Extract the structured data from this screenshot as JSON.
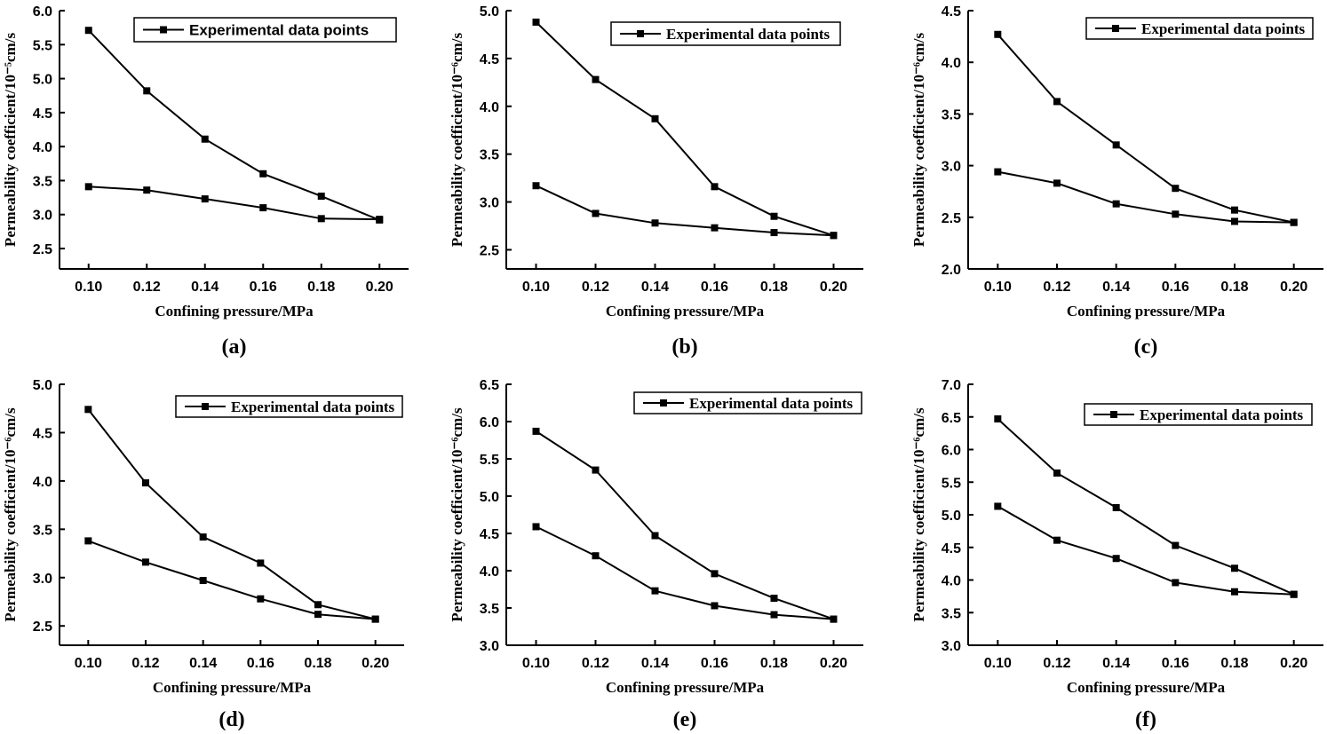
{
  "figure": {
    "panels_count": 6
  },
  "chart_data": [
    {
      "type": "line",
      "panel_label": "(a)",
      "xlabel": "Confining pressure/MPa",
      "ylabel": "Permeability coefficient/10⁻⁵cm/s",
      "x": [
        0.1,
        0.12,
        0.14,
        0.16,
        0.18,
        0.2
      ],
      "x_tick_labels": [
        "0.10",
        "0.12",
        "0.14",
        "0.16",
        "0.18",
        "0.20"
      ],
      "ylim": [
        2.2,
        6.0
      ],
      "y_ticks": [
        2.5,
        3.0,
        3.5,
        4.0,
        4.5,
        5.0,
        5.5,
        6.0
      ],
      "y_tick_labels": [
        "2.5",
        "3.0",
        "3.5",
        "4.0",
        "4.5",
        "5.0",
        "5.5",
        "6.0"
      ],
      "legend": "Experimental data points",
      "series": [
        {
          "name": "upper",
          "values": [
            5.71,
            4.82,
            4.11,
            3.6,
            3.27,
            2.92
          ]
        },
        {
          "name": "lower",
          "values": [
            3.41,
            3.36,
            3.23,
            3.1,
            2.94,
            2.93
          ]
        }
      ]
    },
    {
      "type": "line",
      "panel_label": "(b)",
      "xlabel": "Confining pressure/MPa",
      "ylabel": "Permeability coefficient/10⁻⁶cm/s",
      "x": [
        0.1,
        0.12,
        0.14,
        0.16,
        0.18,
        0.2
      ],
      "x_tick_labels": [
        "0.10",
        "0.12",
        "0.14",
        "0.16",
        "0.18",
        "0.20"
      ],
      "ylim": [
        2.3,
        5.0
      ],
      "y_ticks": [
        2.5,
        3.0,
        3.5,
        4.0,
        4.5,
        5.0
      ],
      "y_tick_labels": [
        "2.5",
        "3.0",
        "3.5",
        "4.0",
        "4.5",
        "5.0"
      ],
      "legend": "Experimental data points",
      "series": [
        {
          "name": "upper",
          "values": [
            4.88,
            4.28,
            3.87,
            3.16,
            2.85,
            2.65
          ]
        },
        {
          "name": "lower",
          "values": [
            3.17,
            2.88,
            2.78,
            2.73,
            2.68,
            2.65
          ]
        }
      ]
    },
    {
      "type": "line",
      "panel_label": "(c)",
      "xlabel": "Confining pressure/MPa",
      "ylabel": "Permeability coefficient/10⁻⁶cm/s",
      "x": [
        0.1,
        0.12,
        0.14,
        0.16,
        0.18,
        0.2
      ],
      "x_tick_labels": [
        "0.10",
        "0.12",
        "0.14",
        "0.16",
        "0.18",
        "0.20"
      ],
      "ylim": [
        2.0,
        4.5
      ],
      "y_ticks": [
        2.0,
        2.5,
        3.0,
        3.5,
        4.0,
        4.5
      ],
      "y_tick_labels": [
        "2.0",
        "2.5",
        "3.0",
        "3.5",
        "4.0",
        "4.5"
      ],
      "legend": "Experimental data points",
      "series": [
        {
          "name": "upper",
          "values": [
            4.27,
            3.62,
            3.2,
            2.78,
            2.57,
            2.45
          ]
        },
        {
          "name": "lower",
          "values": [
            2.94,
            2.83,
            2.63,
            2.53,
            2.46,
            2.45
          ]
        }
      ]
    },
    {
      "type": "line",
      "panel_label": "(d)",
      "xlabel": "Confining pressure/MPa",
      "ylabel": "Permeability coefficient/10⁻⁶cm/s",
      "x": [
        0.1,
        0.12,
        0.14,
        0.16,
        0.18,
        0.2
      ],
      "x_tick_labels": [
        "0.10",
        "0.12",
        "0.14",
        "0.16",
        "0.18",
        "0.20"
      ],
      "ylim": [
        2.3,
        5.0
      ],
      "y_ticks": [
        2.5,
        3.0,
        3.5,
        4.0,
        4.5,
        5.0
      ],
      "y_tick_labels": [
        "2.5",
        "3.0",
        "3.5",
        "4.0",
        "4.5",
        "5.0"
      ],
      "legend": "Experimental data points",
      "series": [
        {
          "name": "upper",
          "values": [
            4.74,
            3.98,
            3.42,
            3.15,
            2.72,
            2.57
          ]
        },
        {
          "name": "lower",
          "values": [
            3.38,
            3.16,
            2.97,
            2.78,
            2.62,
            2.57
          ]
        }
      ]
    },
    {
      "type": "line",
      "panel_label": "(e)",
      "xlabel": "Confining pressure/MPa",
      "ylabel": "Permeability coefficient/10⁻⁶cm/s",
      "x": [
        0.1,
        0.12,
        0.14,
        0.16,
        0.18,
        0.2
      ],
      "x_tick_labels": [
        "0.10",
        "0.12",
        "0.14",
        "0.16",
        "0.18",
        "0.20"
      ],
      "ylim": [
        3.0,
        6.5
      ],
      "y_ticks": [
        3.0,
        3.5,
        4.0,
        4.5,
        5.0,
        5.5,
        6.0,
        6.5
      ],
      "y_tick_labels": [
        "3.0",
        "3.5",
        "4.0",
        "4.5",
        "5.0",
        "5.5",
        "6.0",
        "6.5"
      ],
      "legend": "Experimental data points",
      "series": [
        {
          "name": "upper",
          "values": [
            5.87,
            5.35,
            4.47,
            3.96,
            3.63,
            3.35
          ]
        },
        {
          "name": "lower",
          "values": [
            4.59,
            4.2,
            3.73,
            3.53,
            3.41,
            3.35
          ]
        }
      ]
    },
    {
      "type": "line",
      "panel_label": "(f)",
      "xlabel": "Confining pressure/MPa",
      "ylabel": "Permeability coefficient/10⁻⁶cm/s",
      "x": [
        0.1,
        0.12,
        0.14,
        0.16,
        0.18,
        0.2
      ],
      "x_tick_labels": [
        "0.10",
        "0.12",
        "0.14",
        "0.16",
        "0.18",
        "0.20"
      ],
      "ylim": [
        3.0,
        7.0
      ],
      "y_ticks": [
        3.0,
        3.5,
        4.0,
        4.5,
        5.0,
        5.5,
        6.0,
        6.5,
        7.0
      ],
      "y_tick_labels": [
        "3.0",
        "3.5",
        "4.0",
        "4.5",
        "5.0",
        "5.5",
        "6.0",
        "6.5",
        "7.0"
      ],
      "legend": "Experimental data points",
      "series": [
        {
          "name": "upper",
          "values": [
            6.47,
            5.64,
            5.11,
            4.53,
            4.18,
            3.78
          ]
        },
        {
          "name": "lower",
          "values": [
            5.13,
            4.61,
            4.33,
            3.96,
            3.82,
            3.78
          ]
        }
      ]
    }
  ]
}
